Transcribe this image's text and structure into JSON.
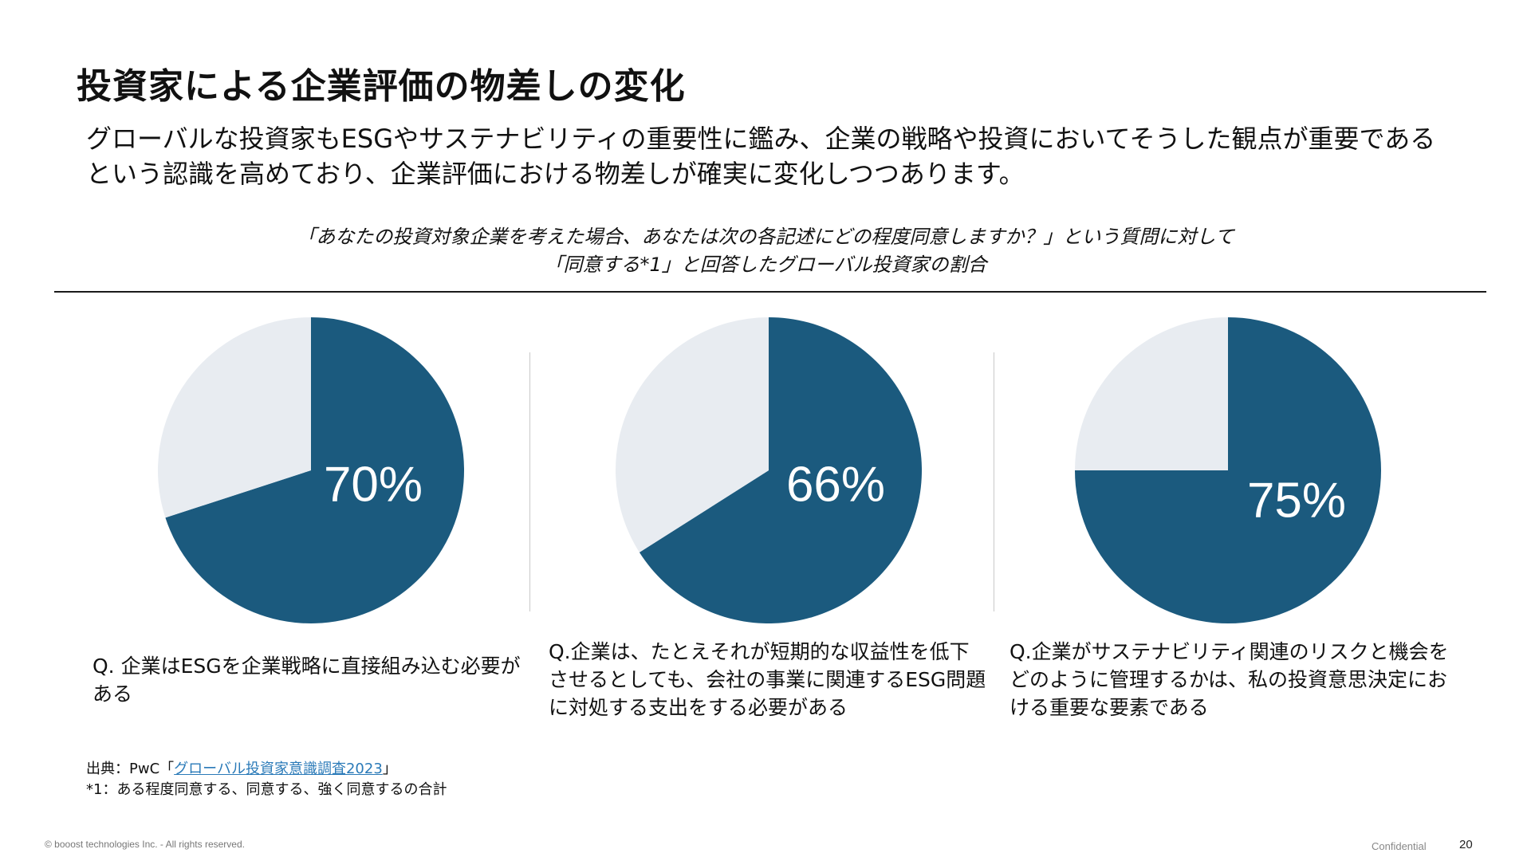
{
  "title": "投資家による企業評価の物差しの変化",
  "lead": "グローバルな投資家もESGやサステナビリティの重要性に鑑み、企業の戦略や投資においてそうした観点が重要であるという認識を高めており、企業評価における物差しが確実に変化しつつあります。",
  "question": {
    "line1": "「あなたの投資対象企業を考えた場合、あなたは次の各記述にどの程度同意しますか？」という質問に対して",
    "line2": "「同意する*1」と回答したグローバル投資家の割合"
  },
  "colors": {
    "agree": "#1b5a7e",
    "rest": "#e8ecf1"
  },
  "chart_data": [
    {
      "type": "pie",
      "values": [
        70,
        30
      ],
      "value_label": "70%",
      "caption": "Q. 企業はESGを企業戦略に直接組み込む必要がある"
    },
    {
      "type": "pie",
      "values": [
        66,
        34
      ],
      "value_label": "66%",
      "caption": "Q.企業は、たとえそれが短期的な収益性を低下させるとしても、会社の事業に関連するESG問題に対処する支出をする必要がある"
    },
    {
      "type": "pie",
      "values": [
        75,
        25
      ],
      "value_label": "75%",
      "caption": "Q.企業がサステナビリティ関連のリスクと機会をどのように管理するかは、私の投資意思決定における重要な要素である"
    }
  ],
  "source": {
    "prefix": "出典：PwC「",
    "link": "グローバル投資家意識調査2023",
    "suffix": "」"
  },
  "note": "*1：ある程度同意する、同意する、強く同意するの合計",
  "footer": {
    "copyright": "© booost technologies Inc. - All rights reserved.",
    "confidential": "Confidential",
    "page": "20"
  }
}
